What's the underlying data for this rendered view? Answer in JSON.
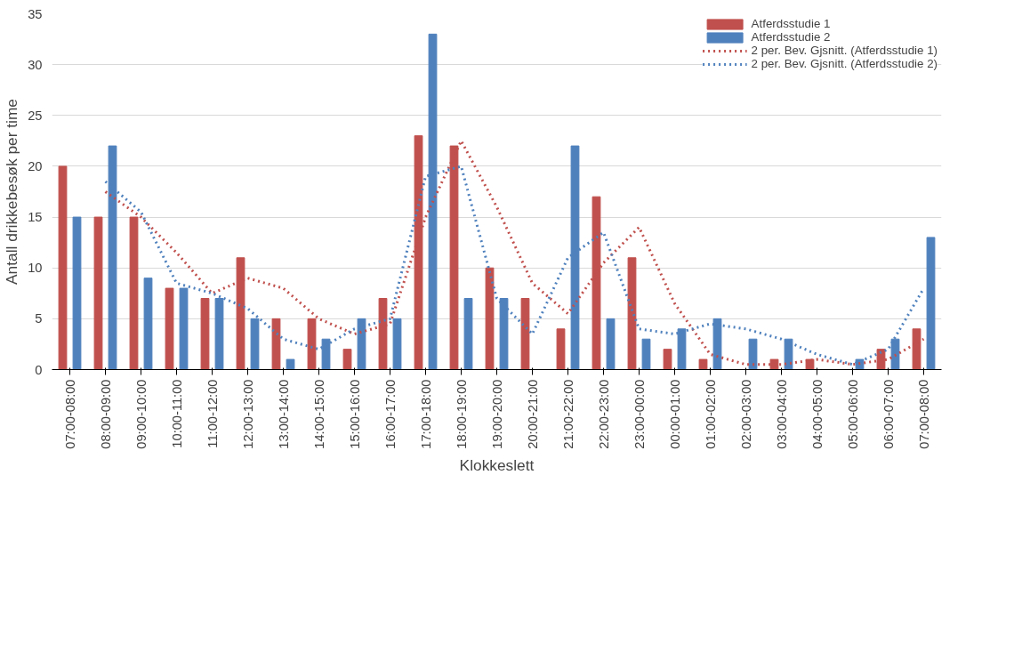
{
  "chart_data": {
    "type": "bar",
    "xlabel": "Klokkeslett",
    "ylabel": "Antall drikkebesøk per time",
    "categories": [
      "07:00-08:00",
      "08:00-09:00",
      "09:00-10:00",
      "10:00-11:00",
      "11:00-12:00",
      "12:00-13:00",
      "13:00-14:00",
      "14:00-15:00",
      "15:00-16:00",
      "16:00-17:00",
      "17:00-18:00",
      "18:00-19:00",
      "19:00-20:00",
      "20:00-21:00",
      "21:00-22:00",
      "22:00-23:00",
      "23:00-00:00",
      "00:00-01:00",
      "01:00-02:00",
      "02:00-03:00",
      "03:00-04:00",
      "04:00-05:00",
      "05:00-06:00",
      "06:00-07:00",
      "07:00-08:00"
    ],
    "series": [
      {
        "name": "Atferdsstudie 1",
        "color": "#c0504d",
        "values": [
          20,
          15,
          15,
          8,
          7,
          11,
          5,
          5,
          2,
          7,
          23,
          22,
          10,
          7,
          4,
          17,
          11,
          2,
          1,
          0,
          1,
          1,
          0,
          2,
          4
        ]
      },
      {
        "name": "Atferdsstudie 2",
        "color": "#4f81bd",
        "values": [
          15,
          22,
          9,
          8,
          7,
          5,
          1,
          3,
          5,
          5,
          33,
          7,
          7,
          0,
          22,
          5,
          3,
          4,
          5,
          3,
          3,
          0,
          1,
          3,
          13
        ]
      },
      {
        "name": "2 per. Bev. Gjsnitt. (Atferdsstudie 1)",
        "type": "line",
        "line_style": "dotted",
        "color": "#c0504d",
        "values": [
          null,
          17.5,
          15,
          11.5,
          7.5,
          9,
          8,
          5,
          3.5,
          4.5,
          15,
          22.5,
          16,
          8.5,
          5.5,
          10.5,
          14,
          6.5,
          1.5,
          0.5,
          0.5,
          1,
          0.5,
          1,
          3
        ]
      },
      {
        "name": "2 per. Bev. Gjsnitt. (Atferdsstudie 2)",
        "type": "line",
        "line_style": "dotted",
        "color": "#4f81bd",
        "values": [
          null,
          18.5,
          15.5,
          8.5,
          7.5,
          6,
          3,
          2,
          4,
          5,
          19,
          20,
          7,
          3.5,
          11,
          13.5,
          4,
          3.5,
          4.5,
          4,
          3,
          1.5,
          0.5,
          2,
          8
        ]
      }
    ],
    "ylim": [
      0,
      35
    ],
    "yticks": [
      0,
      5,
      10,
      15,
      20,
      25,
      30,
      35
    ],
    "grid": "y",
    "legend": "top right"
  }
}
